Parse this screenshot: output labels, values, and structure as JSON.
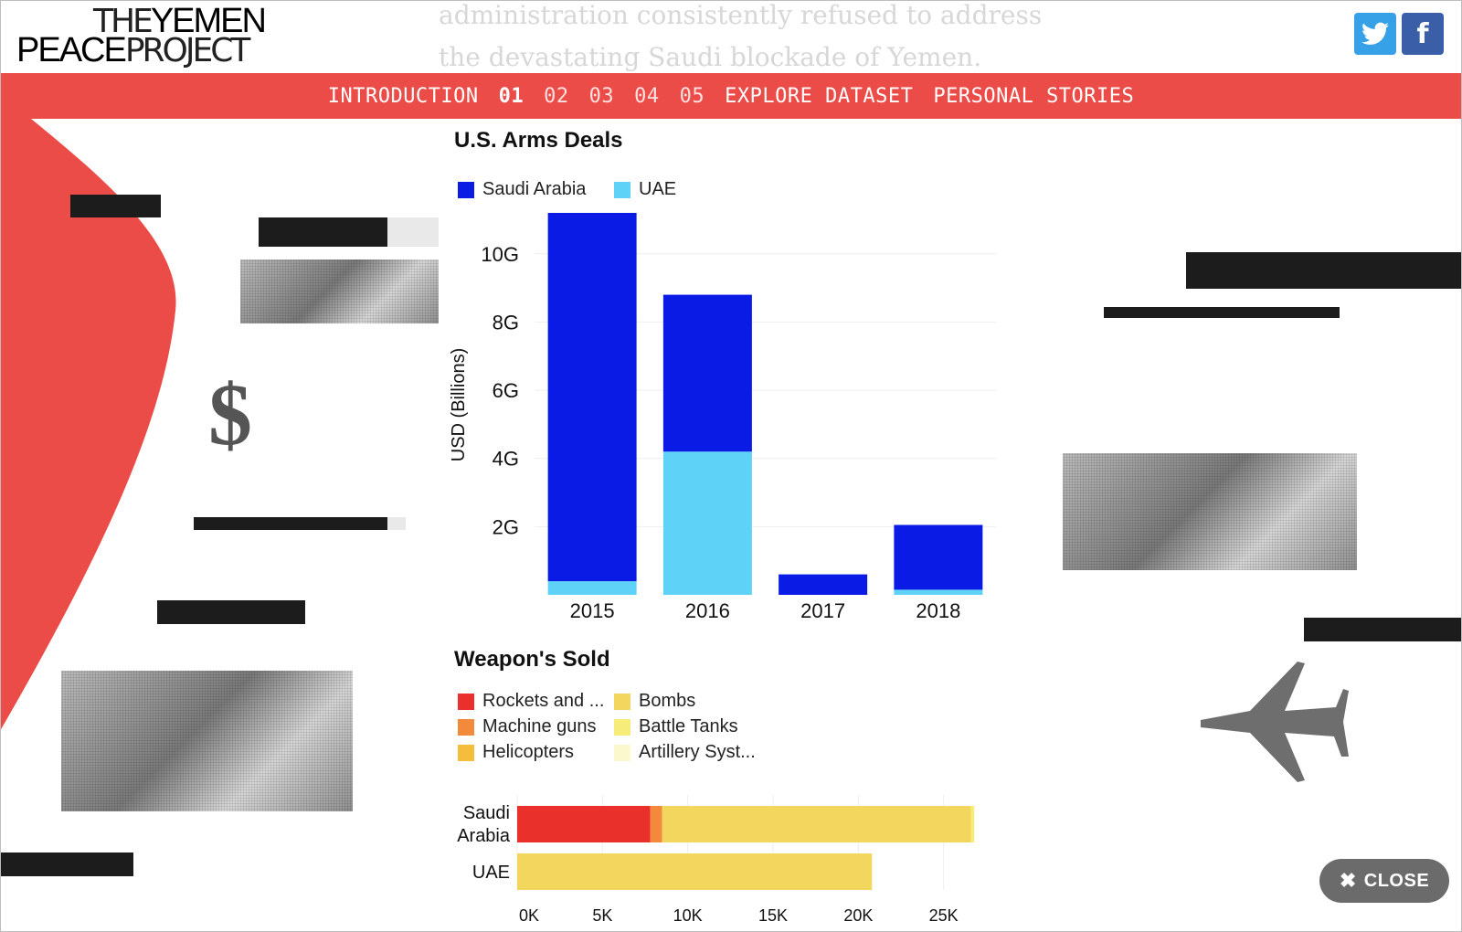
{
  "logo": {
    "the": "THE",
    "yemen": "YEMEN",
    "peace": "PEACE",
    "project": "PROJECT"
  },
  "background_text": {
    "line1": "administration consistently refused to address",
    "line2": "the devastating Saudi blockade of Yemen."
  },
  "social": {
    "twitter_glyph": "🐦",
    "facebook_glyph": "f"
  },
  "nav": {
    "items": [
      "INTRODUCTION",
      "01",
      "02",
      "03",
      "04",
      "05",
      "EXPLORE DATASET",
      "PERSONAL STORIES"
    ],
    "active": "01"
  },
  "collage": {
    "dollar_sign": "$"
  },
  "arms_chart": {
    "title": "U.S. Arms Deals",
    "legend": [
      "Saudi Arabia",
      "UAE"
    ]
  },
  "weapons_chart": {
    "title": "Weapon's Sold",
    "legend": [
      "Rockets and ...",
      "Machine guns",
      "Helicopters",
      "Bombs",
      "Battle Tanks",
      "Artillery Syst..."
    ]
  },
  "close_button": {
    "icon": "✖",
    "label": "CLOSE"
  },
  "colors": {
    "nav": "#ec4c48",
    "saudi": "#0a1be6",
    "uae": "#5fd2f7",
    "rockets": "#e9302b",
    "machine_guns": "#f2893b",
    "helicopters": "#f5bd3c",
    "bombs": "#f3d65e",
    "battle_tanks": "#f6ec7a",
    "artillery": "#fbf8cd"
  },
  "chart_data": [
    {
      "type": "bar",
      "stacked": true,
      "title": "U.S. Arms Deals",
      "ylabel": "USD (Billions)",
      "categories": [
        "2015",
        "2016",
        "2017",
        "2018"
      ],
      "series": [
        {
          "name": "Saudi Arabia",
          "values": [
            10.8,
            4.6,
            0.6,
            1.9
          ]
        },
        {
          "name": "UAE",
          "values": [
            0.4,
            4.2,
            0,
            0.15
          ]
        }
      ],
      "ylim": [
        0,
        11.2
      ],
      "yticks": [
        2,
        4,
        6,
        8,
        10
      ],
      "ytick_labels": [
        "2G",
        "4G",
        "6G",
        "8G",
        "10G"
      ],
      "grid": true,
      "legend": "top-left"
    },
    {
      "type": "bar",
      "orientation": "horizontal",
      "stacked": true,
      "title": "Weapon's Sold",
      "categories": [
        "Saudi Arabia",
        "UAE"
      ],
      "series": [
        {
          "name": "Rockets and ...",
          "values": [
            7800,
            0
          ]
        },
        {
          "name": "Machine guns",
          "values": [
            700,
            0
          ]
        },
        {
          "name": "Helicopters",
          "values": [
            0,
            0
          ]
        },
        {
          "name": "Bombs",
          "values": [
            18100,
            20800
          ]
        },
        {
          "name": "Battle Tanks",
          "values": [
            200,
            0
          ]
        },
        {
          "name": "Artillery Syst...",
          "values": [
            0,
            0
          ]
        }
      ],
      "xlim": [
        0,
        27000
      ],
      "xticks": [
        0,
        5000,
        10000,
        15000,
        20000,
        25000
      ],
      "xtick_labels": [
        "0K",
        "5K",
        "10K",
        "15K",
        "20K",
        "25K"
      ],
      "legend": "top"
    }
  ]
}
